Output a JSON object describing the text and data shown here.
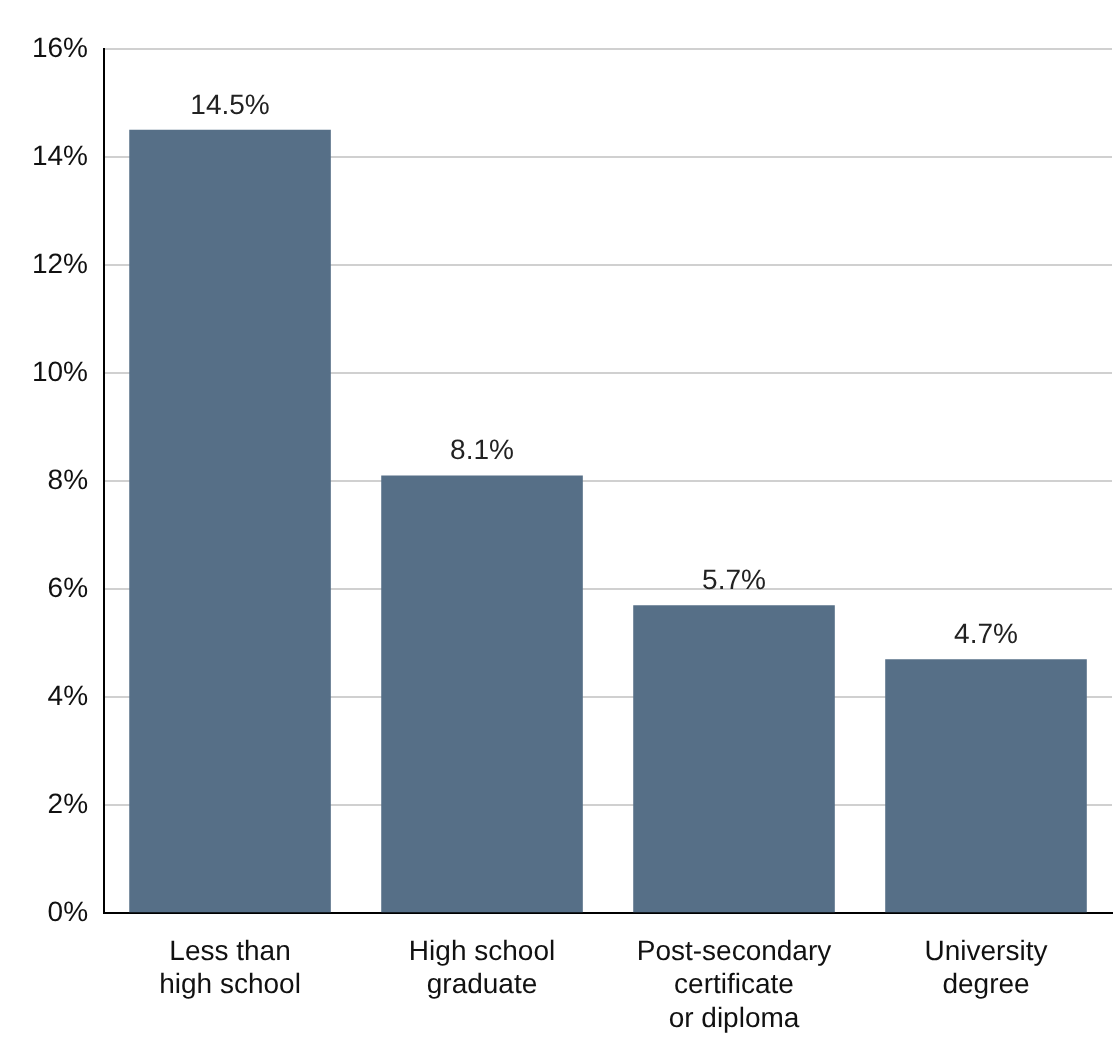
{
  "chart_data": {
    "type": "bar",
    "categories": [
      "Less than\nhigh school",
      "High school\ngraduate",
      "Post-secondary\ncertificate\nor diploma",
      "University\ndegree"
    ],
    "values": [
      14.5,
      8.1,
      5.7,
      4.7
    ],
    "value_labels": [
      "14.5%",
      "8.1%",
      "5.7%",
      "4.7%"
    ],
    "color": "#566f87",
    "ylim": [
      0,
      16
    ],
    "yticks": [
      {
        "value": 0,
        "label": "0%"
      },
      {
        "value": 2,
        "label": "2%"
      },
      {
        "value": 4,
        "label": "4%"
      },
      {
        "value": 6,
        "label": "6%"
      },
      {
        "value": 8,
        "label": "8%"
      },
      {
        "value": 10,
        "label": "10%"
      },
      {
        "value": 12,
        "label": "12%"
      },
      {
        "value": 14,
        "label": "14%"
      },
      {
        "value": 16,
        "label": "16%"
      }
    ],
    "grid": "y"
  }
}
